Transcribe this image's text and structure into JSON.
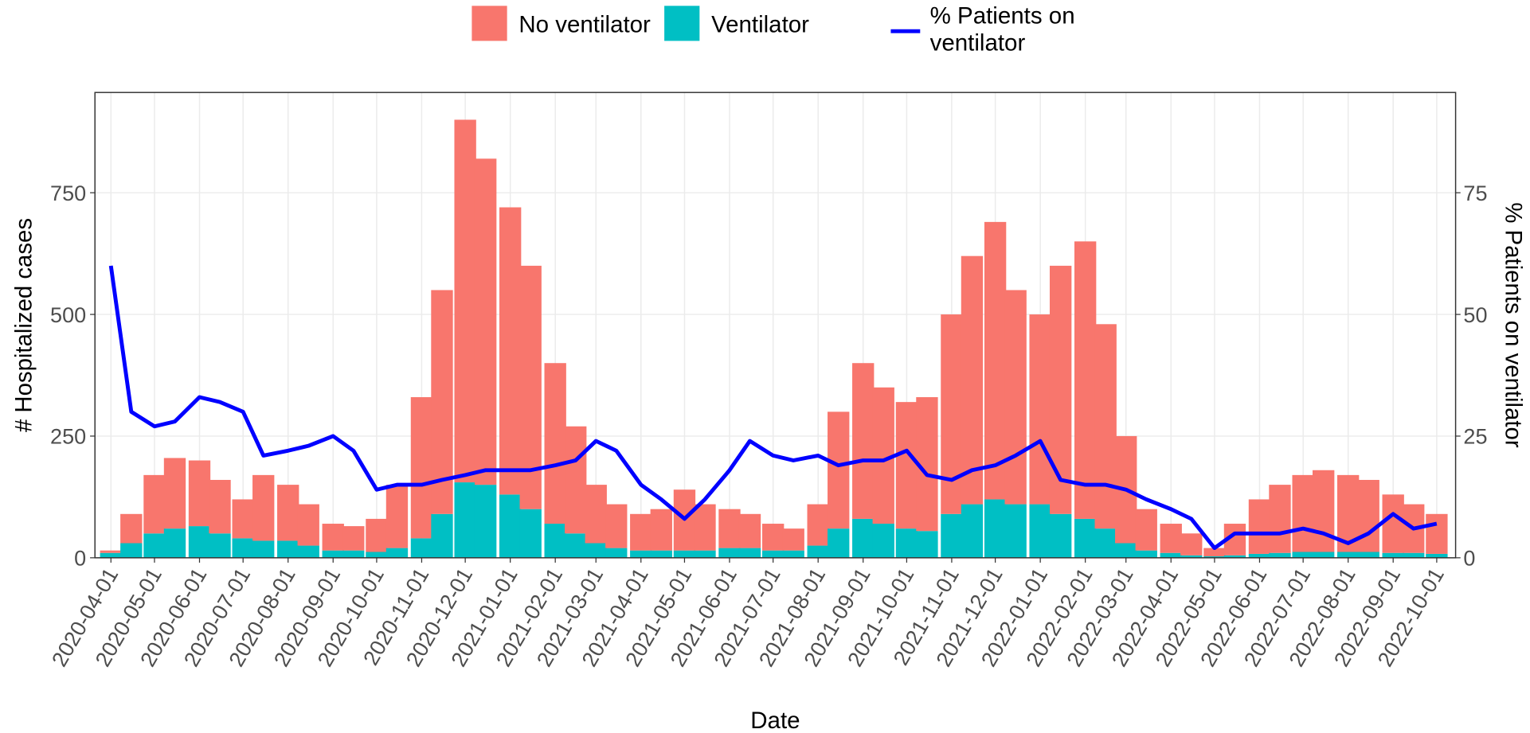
{
  "chart_data": {
    "type": "stacked_bar_line",
    "x_label": "Date",
    "y_label": "# Hospitalized cases",
    "y2_label": "% Patients on ventilator",
    "legend": "top",
    "grid": true,
    "x": [
      "2020-04-01",
      "2020-04-15",
      "2020-05-01",
      "2020-05-15",
      "2020-06-01",
      "2020-06-15",
      "2020-07-01",
      "2020-07-15",
      "2020-08-01",
      "2020-08-15",
      "2020-09-01",
      "2020-09-15",
      "2020-10-01",
      "2020-10-15",
      "2020-11-01",
      "2020-11-15",
      "2020-12-01",
      "2020-12-15",
      "2021-01-01",
      "2021-01-15",
      "2021-02-01",
      "2021-02-15",
      "2021-03-01",
      "2021-03-15",
      "2021-04-01",
      "2021-04-15",
      "2021-05-01",
      "2021-05-15",
      "2021-06-01",
      "2021-06-15",
      "2021-07-01",
      "2021-07-15",
      "2021-08-01",
      "2021-08-15",
      "2021-09-01",
      "2021-09-15",
      "2021-10-01",
      "2021-10-15",
      "2021-11-01",
      "2021-11-15",
      "2021-12-01",
      "2021-12-15",
      "2022-01-01",
      "2022-01-15",
      "2022-02-01",
      "2022-02-15",
      "2022-03-01",
      "2022-03-15",
      "2022-04-01",
      "2022-04-15",
      "2022-05-01",
      "2022-05-15",
      "2022-06-01",
      "2022-06-15",
      "2022-07-01",
      "2022-07-15",
      "2022-08-01",
      "2022-08-15",
      "2022-09-01",
      "2022-09-15",
      "2022-10-01"
    ],
    "xlim": [
      "2020-03-21",
      "2022-10-14"
    ],
    "xticks": [
      "2020-04-01",
      "2020-05-01",
      "2020-06-01",
      "2020-07-01",
      "2020-08-01",
      "2020-09-01",
      "2020-10-01",
      "2020-11-01",
      "2020-12-01",
      "2021-01-01",
      "2021-02-01",
      "2021-03-01",
      "2021-04-01",
      "2021-05-01",
      "2021-06-01",
      "2021-07-01",
      "2021-08-01",
      "2021-09-01",
      "2021-10-01",
      "2021-11-01",
      "2021-12-01",
      "2022-01-01",
      "2022-02-01",
      "2022-03-01",
      "2022-04-01",
      "2022-05-01",
      "2022-06-01",
      "2022-07-01",
      "2022-08-01",
      "2022-09-01",
      "2022-10-01"
    ],
    "ylim": [
      0,
      956
    ],
    "yticks": [
      0,
      250,
      500,
      750
    ],
    "y2lim": [
      0,
      95.6
    ],
    "y2ticks": [
      0,
      25,
      50,
      75
    ],
    "series": [
      {
        "name": "No ventilator",
        "color": "#F8766D",
        "stack": "cases",
        "values": [
          5,
          60,
          120,
          145,
          135,
          110,
          80,
          135,
          115,
          85,
          55,
          50,
          68,
          130,
          290,
          460,
          745,
          670,
          590,
          500,
          330,
          220,
          120,
          90,
          75,
          85,
          125,
          95,
          80,
          70,
          55,
          45,
          85,
          240,
          320,
          280,
          260,
          275,
          410,
          510,
          570,
          440,
          390,
          510,
          570,
          420,
          220,
          85,
          60,
          45,
          17,
          65,
          112,
          140,
          158,
          168,
          158,
          148,
          120,
          100,
          82
        ]
      },
      {
        "name": "Ventilator",
        "color": "#00BFC4",
        "stack": "cases",
        "values": [
          10,
          30,
          50,
          60,
          65,
          50,
          40,
          35,
          35,
          25,
          15,
          15,
          12,
          20,
          40,
          90,
          155,
          150,
          130,
          100,
          70,
          50,
          30,
          20,
          15,
          15,
          15,
          15,
          20,
          20,
          15,
          15,
          25,
          60,
          80,
          70,
          60,
          55,
          90,
          110,
          120,
          110,
          110,
          90,
          80,
          60,
          30,
          15,
          10,
          5,
          3,
          5,
          8,
          10,
          12,
          12,
          12,
          12,
          10,
          10,
          8
        ]
      },
      {
        "name": "% Patients on ventilator",
        "color": "#0000FF",
        "axis": "y2",
        "kind": "line",
        "values": [
          60,
          30,
          27,
          28,
          33,
          32,
          30,
          21,
          22,
          23,
          25,
          22,
          14,
          15,
          15,
          16,
          17,
          18,
          18,
          18,
          19,
          20,
          24,
          22,
          15,
          12,
          8,
          12,
          18,
          24,
          21,
          20,
          21,
          19,
          20,
          20,
          22,
          17,
          16,
          18,
          19,
          21,
          24,
          16,
          15,
          15,
          14,
          12,
          10,
          8,
          2,
          5,
          5,
          5,
          6,
          5,
          3,
          5,
          9,
          6,
          7
        ]
      }
    ]
  }
}
